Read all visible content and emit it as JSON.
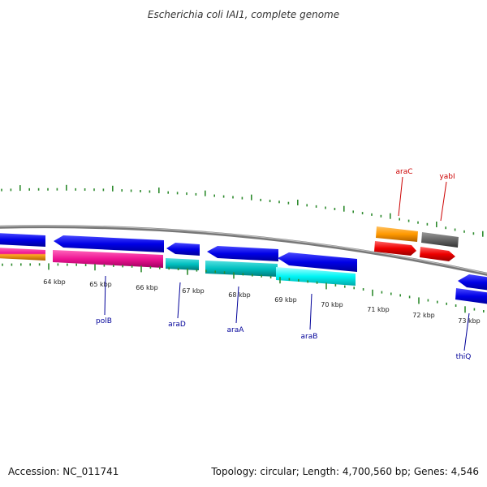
{
  "title": "Escherichia coli IAI1, complete genome",
  "footer": {
    "accession": "Accession: NC_011741",
    "topology": "Topology: circular; Length: 4,700,560 bp; Genes: 4,546"
  },
  "colors": {
    "backbone": "#888888",
    "tick": "#2e8b2e",
    "label_forward": "#cc0000",
    "label_reverse": "#000099"
  },
  "scale_labels": [
    "64 kbp",
    "65 kbp",
    "66 kbp",
    "67 kbp",
    "68 kbp",
    "69 kbp",
    "70 kbp",
    "71 kbp",
    "72 kbp",
    "73 kbp"
  ],
  "gene_labels": [
    {
      "text": "araC",
      "strand": "forward"
    },
    {
      "text": "yabI",
      "strand": "forward"
    },
    {
      "text": "polB",
      "strand": "reverse"
    },
    {
      "text": "araD",
      "strand": "reverse"
    },
    {
      "text": "araA",
      "strand": "reverse"
    },
    {
      "text": "araB",
      "strand": "reverse"
    },
    {
      "text": "thiQ",
      "strand": "reverse"
    }
  ]
}
